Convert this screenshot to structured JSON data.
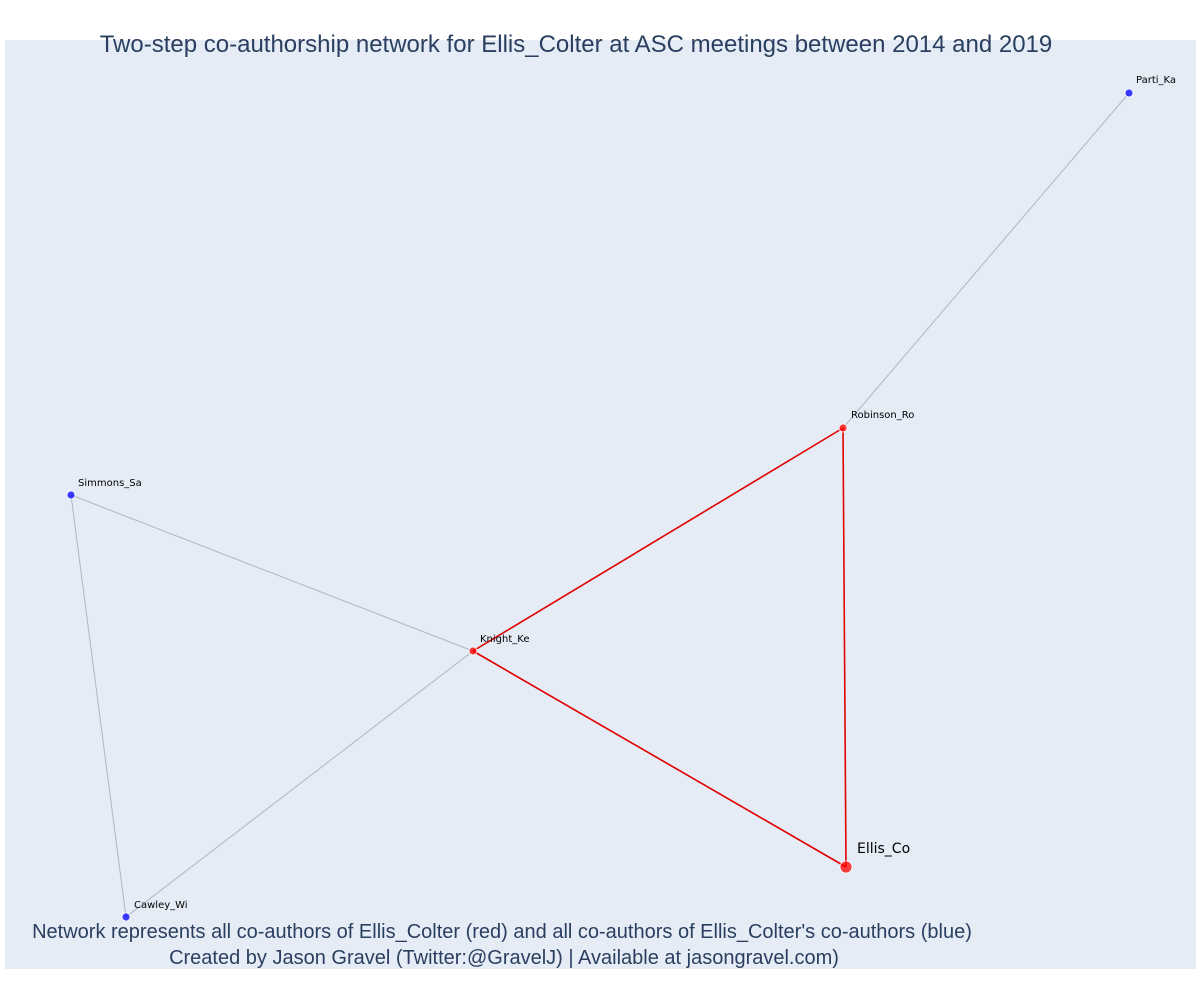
{
  "title": "Two-step co-authorship network for Ellis_Colter at ASC meetings between 2014 and 2019",
  "caption": {
    "line1": "Network represents all co-authors of Ellis_Colter (red) and all co-authors of Ellis_Colter's co-authors (blue)",
    "line2": "Created by Jason Gravel (Twitter:@GravelJ) | Available at jasongravel.com)"
  },
  "colors": {
    "background": "#e5ecf6",
    "first_degree": "#ff0000",
    "second_degree": "#0000ff",
    "edge_first": "#e00000",
    "edge_second": "#b0b4c4",
    "text": "#2a3f5f"
  },
  "nodes": [
    {
      "id": "ellis",
      "label": "Ellis_Co",
      "group": "focal"
    },
    {
      "id": "robinson",
      "label": "Robinson_Ro",
      "group": "first"
    },
    {
      "id": "knight",
      "label": "Knight_Ke",
      "group": "first"
    },
    {
      "id": "simmons",
      "label": "Simmons_Sa",
      "group": "second"
    },
    {
      "id": "cawley",
      "label": "Cawley_Wi",
      "group": "second"
    },
    {
      "id": "parti",
      "label": "Parti_Ka",
      "group": "second"
    }
  ],
  "edges": [
    {
      "source": "ellis",
      "target": "robinson",
      "type": "first"
    },
    {
      "source": "ellis",
      "target": "knight",
      "type": "first"
    },
    {
      "source": "knight",
      "target": "robinson",
      "type": "first"
    },
    {
      "source": "robinson",
      "target": "parti",
      "type": "second"
    },
    {
      "source": "knight",
      "target": "simmons",
      "type": "second"
    },
    {
      "source": "knight",
      "target": "cawley",
      "type": "second"
    },
    {
      "source": "simmons",
      "target": "cawley",
      "type": "second"
    }
  ]
}
